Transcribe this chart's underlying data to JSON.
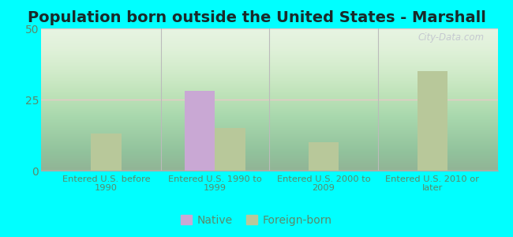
{
  "title": "Population born outside the United States - Marshall",
  "categories": [
    "Entered U.S. before\n1990",
    "Entered U.S. 1990 to\n1999",
    "Entered U.S. 2000 to\n2009",
    "Entered U.S. 2010 or\nlater"
  ],
  "native_values": [
    0,
    28,
    0,
    0
  ],
  "foreign_values": [
    13,
    15,
    10,
    35
  ],
  "native_color": "#c9a8d4",
  "foreign_color": "#b8c89a",
  "ylim": [
    0,
    50
  ],
  "yticks": [
    0,
    25,
    50
  ],
  "chart_bg_top": "#ffffff",
  "chart_bg_bottom": "#c8e8c0",
  "outer_background": "#00ffff",
  "title_fontsize": 14,
  "title_color": "#1a2a2a",
  "tick_label_color": "#5a8a6a",
  "bar_width": 0.28,
  "gridline_color": "#e8c8c8",
  "watermark_text": "City-Data.com",
  "legend_native": "Native",
  "legend_foreign": "Foreign-born"
}
